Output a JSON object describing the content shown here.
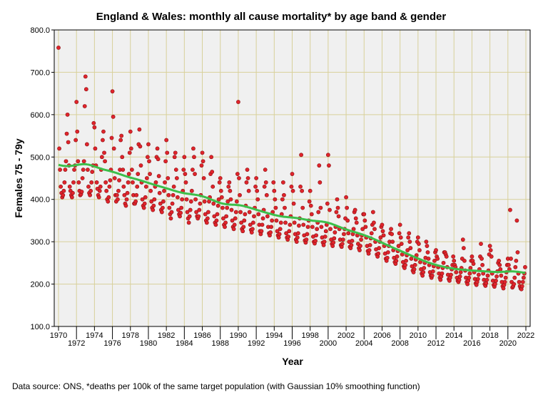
{
  "chart_data": {
    "type": "scatter",
    "title": "England & Wales: monthly all cause mortality* by age band & gender",
    "xlabel": "Year",
    "ylabel": "Females 75 - 79y",
    "footnote": "Data source: ONS, *deaths per 100k of the same target population (with Gaussian 10% smoothing function)",
    "xlim": [
      1970,
      2022
    ],
    "ylim": [
      100,
      800
    ],
    "grid": true,
    "yticks": [
      100,
      200,
      300,
      400,
      500,
      600,
      700,
      800
    ],
    "ytick_labels": [
      "100.0",
      "200.0",
      "300.0",
      "400.0",
      "500.0",
      "600.0",
      "700.0",
      "800.0"
    ],
    "xticks": [
      "1970",
      "1972",
      "1974",
      "1976",
      "1978",
      "1980",
      "1982",
      "1984",
      "1986",
      "1988",
      "1990",
      "1992",
      "1994",
      "1996",
      "1998",
      "2000",
      "2002",
      "2004",
      "2006",
      "2008",
      "2010",
      "2012",
      "2014",
      "2016",
      "2018",
      "2020",
      "2022"
    ],
    "point_color": "#e0242b",
    "smooth_color": "#3cbf4a",
    "smoothing": "Gaussian 10%",
    "start_year": 1970,
    "monthly_values_by_year": [
      [
        758,
        520,
        470,
        430,
        415,
        405,
        410,
        420,
        440,
        470,
        490,
        555
      ],
      [
        600,
        535,
        480,
        430,
        420,
        410,
        405,
        415,
        440,
        470,
        480,
        540
      ],
      [
        630,
        560,
        490,
        440,
        420,
        410,
        412,
        418,
        450,
        470,
        490,
        620
      ],
      [
        690,
        660,
        530,
        470,
        430,
        415,
        410,
        420,
        440,
        465,
        480,
        580
      ],
      [
        570,
        520,
        480,
        440,
        425,
        410,
        405,
        420,
        430,
        470,
        500,
        540
      ],
      [
        560,
        510,
        490,
        440,
        420,
        400,
        395,
        405,
        430,
        445,
        470,
        545
      ],
      [
        655,
        595,
        520,
        450,
        410,
        395,
        410,
        400,
        420,
        445,
        470,
        540
      ],
      [
        550,
        500,
        470,
        430,
        410,
        390,
        385,
        400,
        415,
        440,
        460,
        510
      ],
      [
        560,
        520,
        470,
        440,
        410,
        390,
        390,
        395,
        410,
        430,
        460,
        530
      ],
      [
        565,
        525,
        480,
        440,
        400,
        385,
        380,
        390,
        405,
        430,
        450,
        500
      ],
      [
        530,
        490,
        460,
        420,
        395,
        380,
        375,
        385,
        400,
        430,
        440,
        500
      ],
      [
        520,
        495,
        455,
        415,
        390,
        375,
        370,
        380,
        395,
        420,
        440,
        490
      ],
      [
        540,
        510,
        450,
        410,
        380,
        365,
        355,
        370,
        390,
        410,
        430,
        500
      ],
      [
        510,
        470,
        450,
        405,
        375,
        365,
        360,
        368,
        380,
        400,
        420,
        470
      ],
      [
        500,
        460,
        440,
        400,
        370,
        355,
        345,
        360,
        375,
        395,
        420,
        470
      ],
      [
        520,
        500,
        460,
        400,
        370,
        360,
        355,
        360,
        375,
        390,
        410,
        480
      ],
      [
        510,
        490,
        450,
        395,
        365,
        350,
        345,
        355,
        370,
        395,
        405,
        460
      ],
      [
        500,
        465,
        430,
        390,
        360,
        345,
        340,
        350,
        365,
        385,
        400,
        440
      ],
      [
        450,
        420,
        405,
        380,
        355,
        340,
        335,
        345,
        360,
        380,
        395,
        430
      ],
      [
        440,
        420,
        400,
        375,
        350,
        335,
        330,
        340,
        355,
        370,
        395,
        460
      ],
      [
        630,
        450,
        410,
        370,
        345,
        330,
        325,
        335,
        350,
        365,
        385,
        440
      ],
      [
        470,
        450,
        420,
        370,
        340,
        328,
        322,
        330,
        345,
        360,
        380,
        430
      ],
      [
        450,
        420,
        400,
        365,
        340,
        325,
        318,
        325,
        340,
        355,
        375,
        430
      ],
      [
        470,
        440,
        410,
        360,
        335,
        320,
        315,
        322,
        335,
        350,
        370,
        440
      ],
      [
        420,
        400,
        380,
        350,
        325,
        315,
        310,
        318,
        330,
        345,
        365,
        400
      ],
      [
        440,
        410,
        380,
        345,
        320,
        310,
        305,
        312,
        325,
        340,
        360,
        430
      ],
      [
        460,
        420,
        390,
        345,
        318,
        305,
        300,
        310,
        320,
        338,
        355,
        430
      ],
      [
        505,
        420,
        380,
        340,
        315,
        303,
        298,
        305,
        318,
        335,
        350,
        395
      ],
      [
        420,
        385,
        365,
        335,
        312,
        300,
        296,
        302,
        315,
        330,
        345,
        370
      ],
      [
        480,
        440,
        380,
        335,
        310,
        298,
        292,
        300,
        312,
        325,
        340,
        390
      ],
      [
        505,
        480,
        375,
        330,
        305,
        295,
        290,
        298,
        308,
        322,
        335,
        370
      ],
      [
        400,
        380,
        360,
        330,
        305,
        292,
        288,
        295,
        305,
        318,
        330,
        355
      ],
      [
        405,
        380,
        350,
        320,
        300,
        288,
        285,
        292,
        302,
        318,
        330,
        370
      ],
      [
        375,
        355,
        345,
        315,
        295,
        285,
        280,
        290,
        305,
        315,
        330,
        365
      ],
      [
        365,
        350,
        335,
        310,
        290,
        278,
        272,
        280,
        292,
        308,
        320,
        340
      ],
      [
        370,
        345,
        330,
        300,
        282,
        270,
        265,
        272,
        285,
        300,
        310,
        335
      ],
      [
        340,
        325,
        315,
        290,
        272,
        260,
        255,
        262,
        275,
        290,
        300,
        320
      ],
      [
        330,
        318,
        300,
        280,
        262,
        252,
        248,
        255,
        265,
        278,
        290,
        320
      ],
      [
        340,
        310,
        295,
        270,
        252,
        242,
        238,
        245,
        255,
        268,
        280,
        310
      ],
      [
        320,
        300,
        285,
        260,
        242,
        232,
        228,
        235,
        245,
        258,
        268,
        300
      ],
      [
        310,
        295,
        280,
        252,
        235,
        225,
        220,
        228,
        238,
        250,
        262,
        300
      ],
      [
        290,
        275,
        260,
        245,
        228,
        220,
        215,
        220,
        230,
        242,
        255,
        275
      ],
      [
        280,
        265,
        260,
        240,
        225,
        215,
        210,
        218,
        225,
        238,
        250,
        275
      ],
      [
        275,
        270,
        265,
        240,
        222,
        212,
        208,
        215,
        222,
        235,
        245,
        265
      ],
      [
        255,
        245,
        240,
        228,
        215,
        208,
        205,
        210,
        218,
        228,
        238,
        260
      ],
      [
        305,
        285,
        255,
        232,
        215,
        205,
        200,
        208,
        215,
        225,
        238,
        255
      ],
      [
        265,
        255,
        248,
        228,
        212,
        202,
        198,
        205,
        212,
        222,
        235,
        265
      ],
      [
        295,
        260,
        245,
        225,
        210,
        200,
        196,
        202,
        210,
        220,
        232,
        270
      ],
      [
        290,
        280,
        265,
        225,
        208,
        198,
        194,
        200,
        208,
        218,
        230,
        250
      ],
      [
        255,
        245,
        235,
        220,
        205,
        195,
        190,
        198,
        205,
        215,
        228,
        245
      ],
      [
        260,
        245,
        235,
        375,
        260,
        205,
        192,
        195,
        200,
        215,
        240,
        255
      ],
      [
        350,
        275,
        225,
        205,
        195,
        190,
        188,
        195,
        205,
        215,
        225,
        240
      ]
    ]
  }
}
